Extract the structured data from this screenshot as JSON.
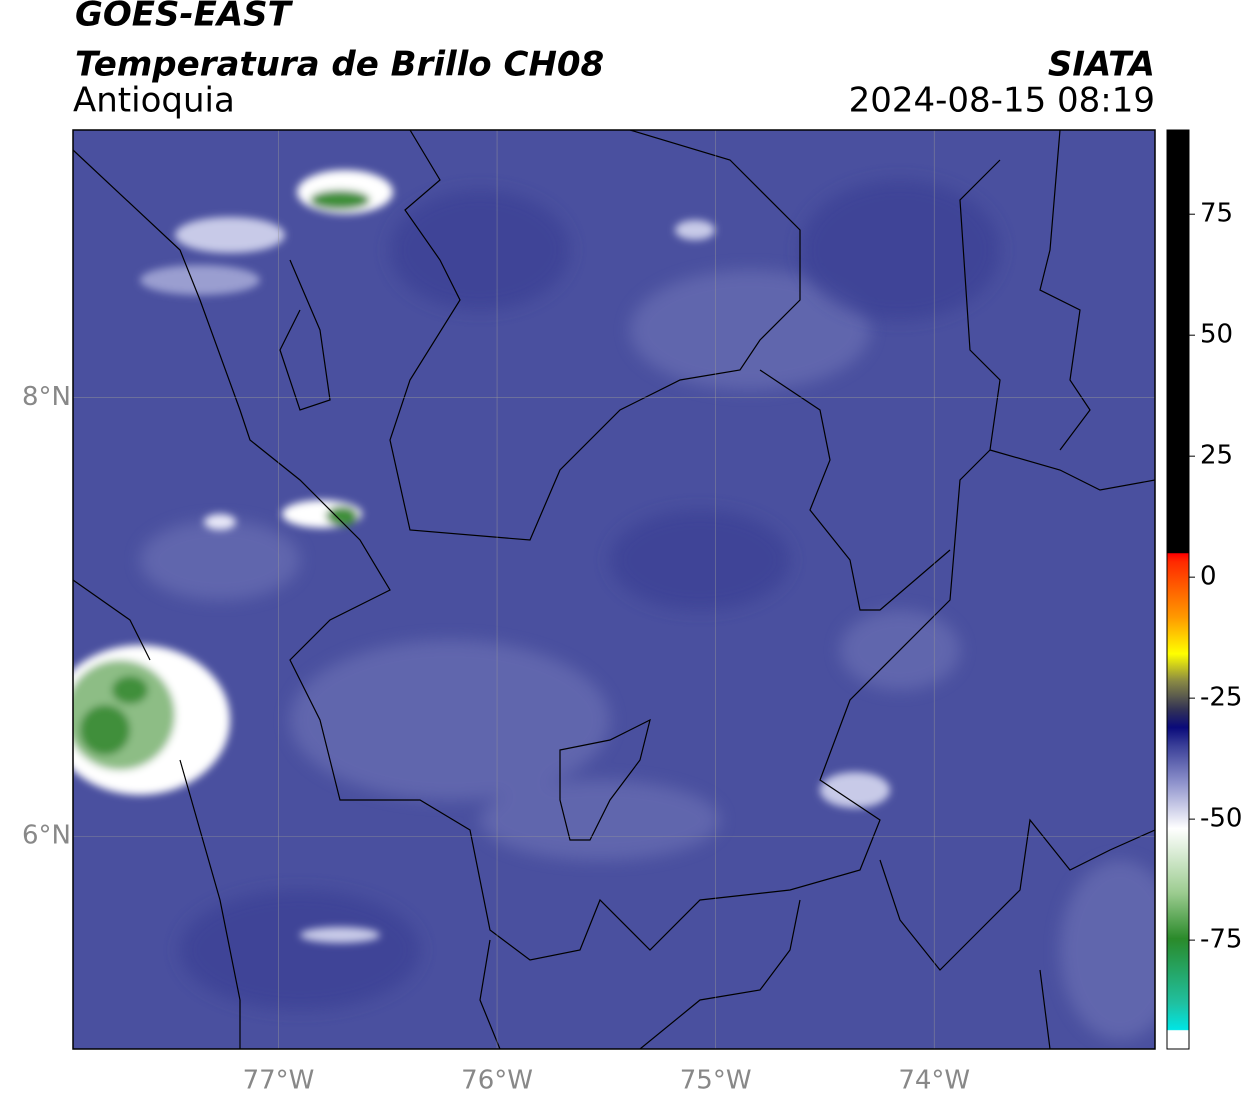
{
  "header": {
    "satellite": "GOES-EAST",
    "product": "Temperatura de Brillo CH08",
    "region": "Antioquia",
    "source": "SIATA",
    "datetime": "2024-08-15 08:19"
  },
  "map": {
    "xlim": [
      -77.94,
      -72.99
    ],
    "ylim": [
      5.03,
      9.22
    ],
    "xticks": [
      {
        "value": -77,
        "label": "77°W"
      },
      {
        "value": -76,
        "label": "76°W"
      },
      {
        "value": -75,
        "label": "75°W"
      },
      {
        "value": -74,
        "label": "74°W"
      }
    ],
    "yticks": [
      {
        "value": 8,
        "label": "8°N"
      },
      {
        "value": 6,
        "label": "6°N"
      }
    ]
  },
  "colorbar": {
    "lim": [
      -97.5,
      92.4
    ],
    "ticks": [
      75,
      50,
      25,
      0,
      -25,
      -50,
      -75
    ]
  }
}
